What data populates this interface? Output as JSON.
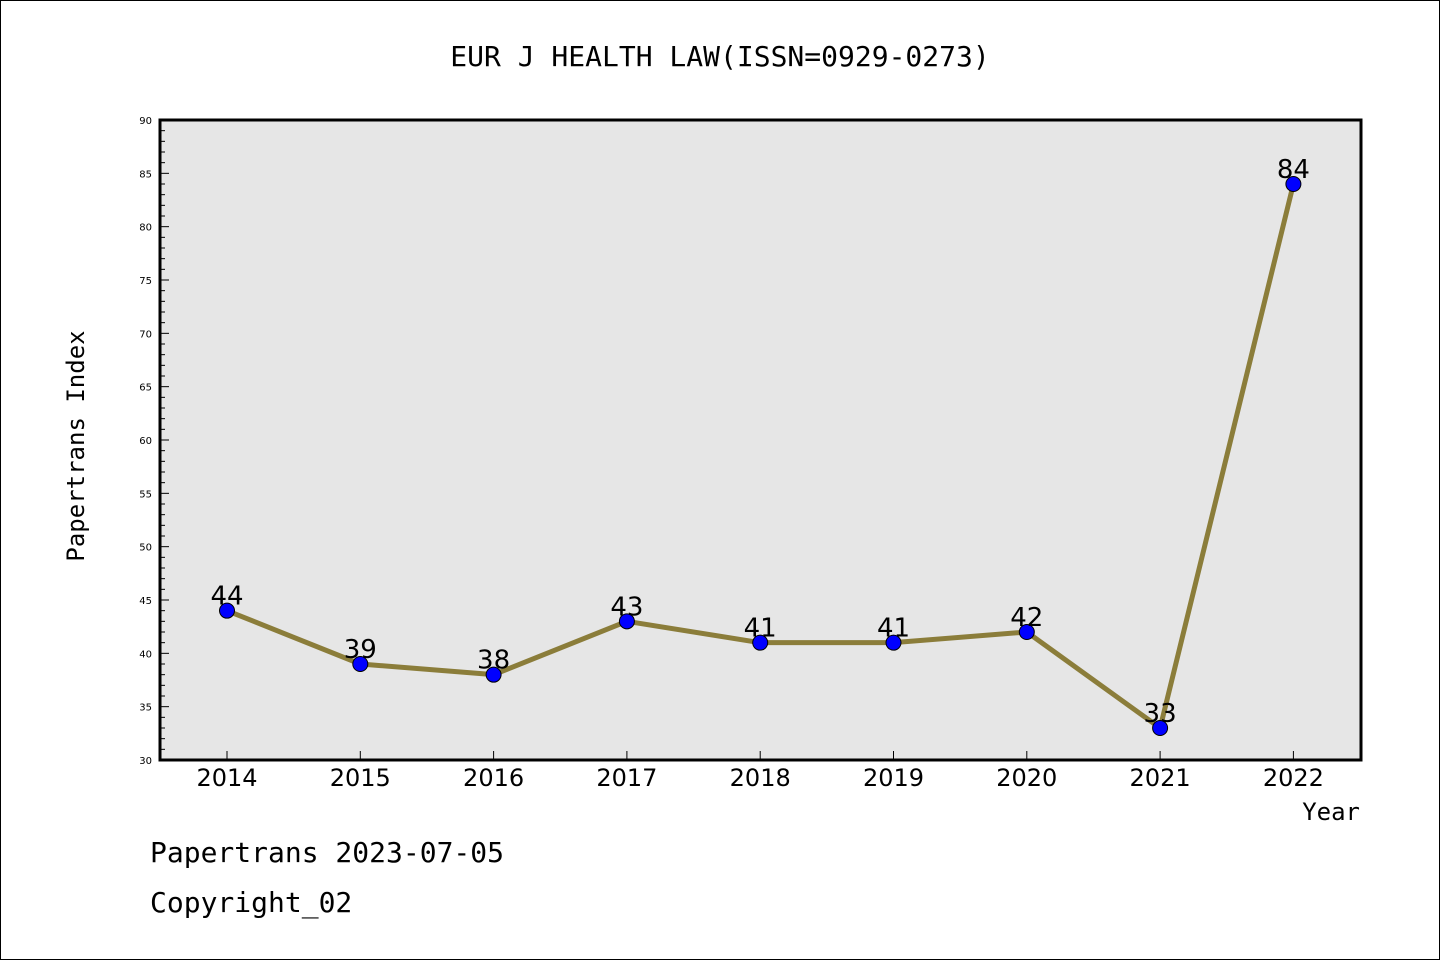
{
  "chart_data": {
    "type": "line",
    "title": "EUR J HEALTH LAW(ISSN=0929-0273)",
    "xlabel": "Year",
    "ylabel": "Papertrans Index",
    "x": [
      "2014",
      "2015",
      "2016",
      "2017",
      "2018",
      "2019",
      "2020",
      "2021",
      "2022"
    ],
    "series": [
      {
        "values": [
          44,
          39,
          38,
          43,
          41,
          41,
          42,
          33,
          84
        ]
      }
    ],
    "ylim": [
      30,
      90
    ],
    "yticks": [
      30,
      35,
      40,
      45,
      50,
      55,
      60,
      65,
      70,
      75,
      80,
      85,
      90
    ],
    "grid": false,
    "colors": {
      "plot_background": "#e6e6e6",
      "line": "#8b7d3a",
      "marker": "#0000ff"
    }
  },
  "footer": {
    "line1": "Papertrans 2023-07-05",
    "line2": "Copyright_02"
  }
}
